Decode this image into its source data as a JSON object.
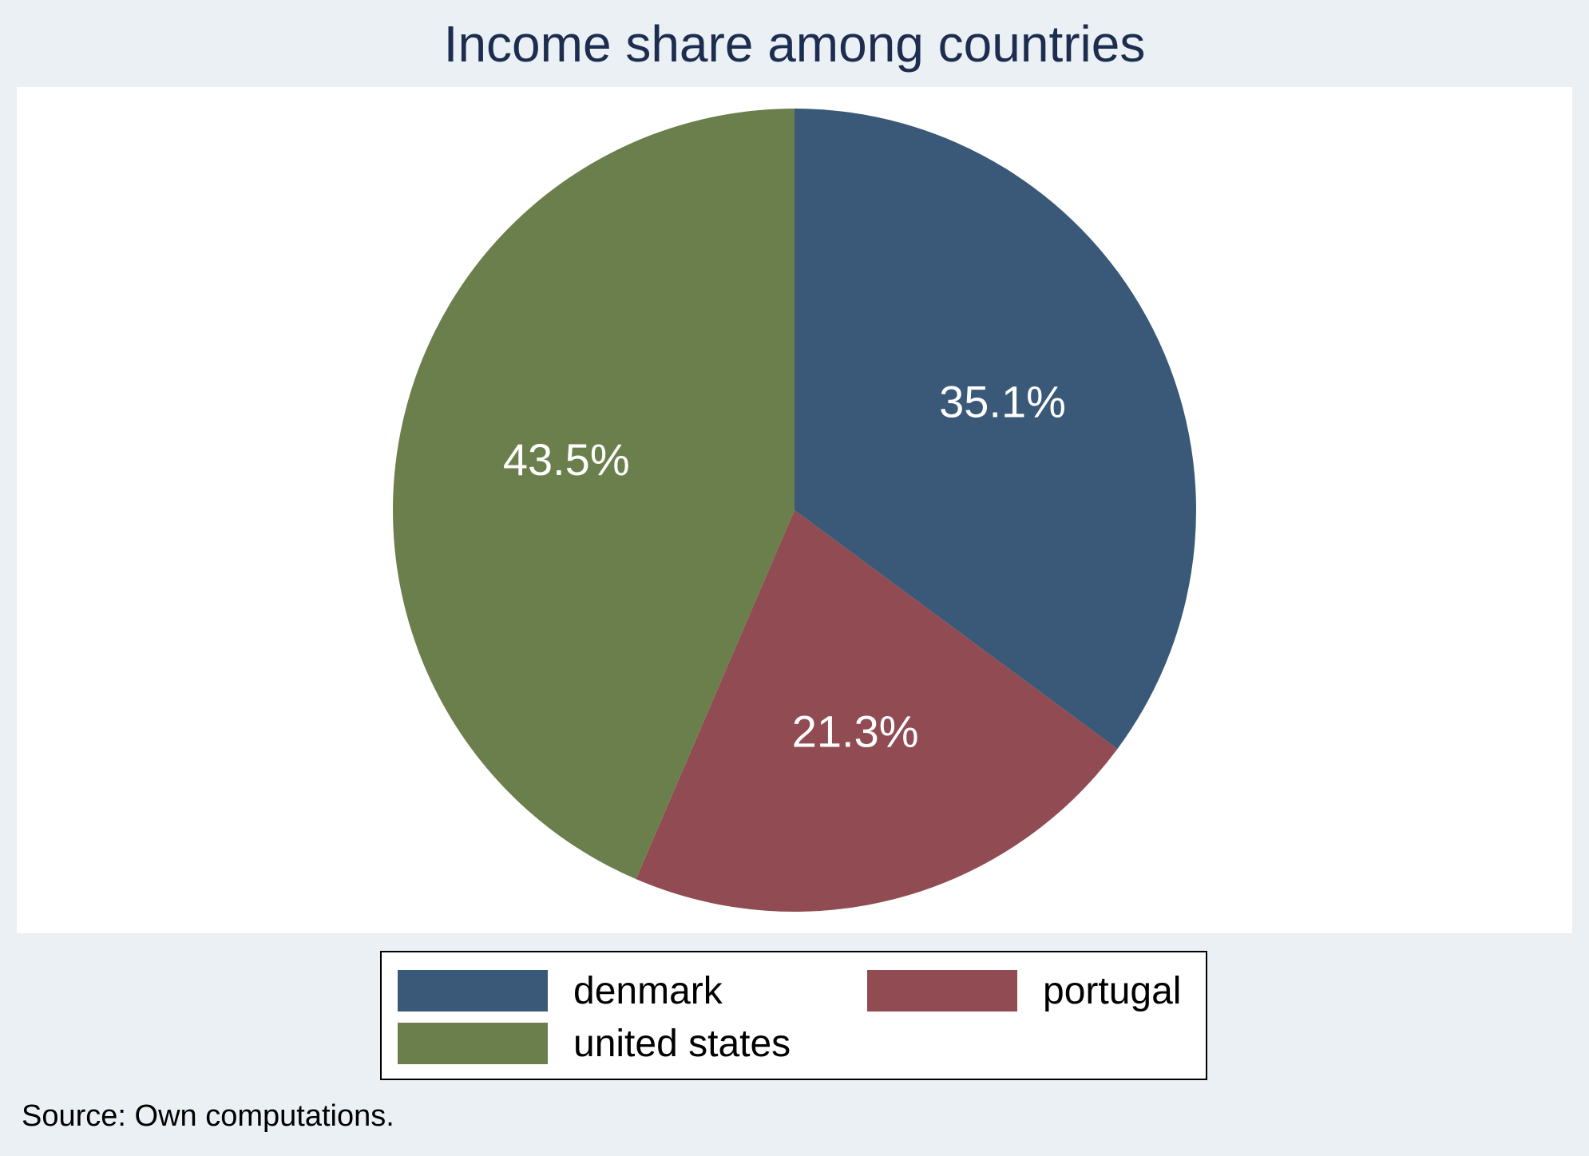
{
  "chart_data": {
    "type": "pie",
    "title": "Income share among countries",
    "slices": [
      {
        "label": "denmark",
        "value": 35.1,
        "display": "35.1%",
        "color": "#3a5878"
      },
      {
        "label": "portugal",
        "value": 21.3,
        "display": "21.3%",
        "color": "#904c52"
      },
      {
        "label": "united states",
        "value": 43.5,
        "display": "43.5%",
        "color": "#6b7f4c"
      }
    ],
    "start_angle": "12 o'clock",
    "direction": "clockwise",
    "legend_position": "bottom",
    "note": "Source: Own computations."
  },
  "colors": {
    "background": "#eaf0f3",
    "plot_area": "#ffffff",
    "title": "#1c2d4f",
    "slice_label": "#ffffff"
  }
}
